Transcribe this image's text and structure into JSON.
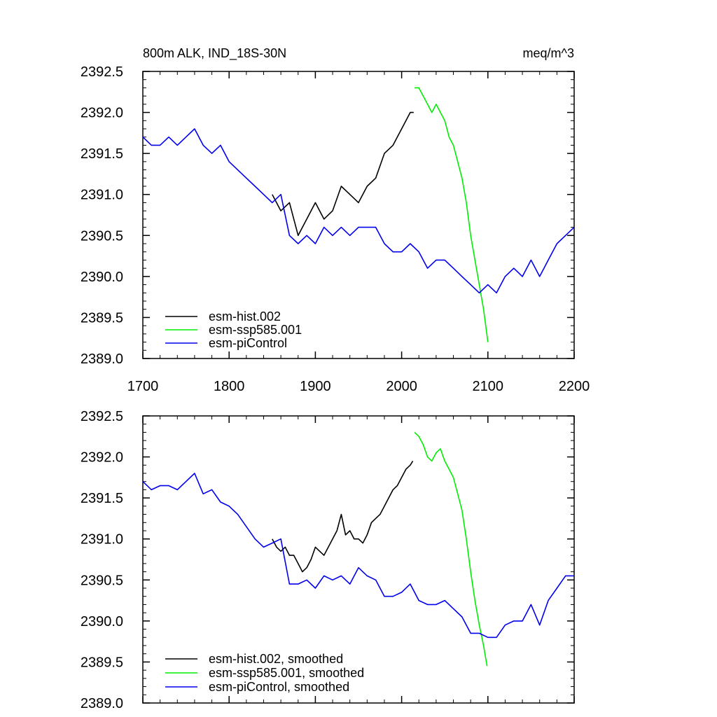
{
  "chart_data": [
    {
      "type": "line",
      "title": "800m ALK, IND_18S-30N",
      "units": "meq/m^3",
      "xlim": [
        1700,
        2200
      ],
      "ylim": [
        2389.0,
        2392.5
      ],
      "x_ticks": [
        1700,
        1800,
        1900,
        2000,
        2100,
        2200
      ],
      "y_ticks": [
        "2389.0",
        "2389.5",
        "2390.0",
        "2390.5",
        "2391.0",
        "2391.5",
        "2392.0",
        "2392.5"
      ],
      "x_tick_labels_shown": true,
      "legend_position": "bottom-left",
      "series": [
        {
          "name": "esm-hist.002",
          "color": "#000000",
          "x": [
            1850,
            1860,
            1870,
            1880,
            1890,
            1900,
            1910,
            1920,
            1930,
            1940,
            1950,
            1960,
            1970,
            1980,
            1990,
            2000,
            2005,
            2010,
            2014
          ],
          "y": [
            2391.0,
            2390.8,
            2390.9,
            2390.5,
            2390.7,
            2390.9,
            2390.7,
            2390.8,
            2391.1,
            2391.0,
            2390.9,
            2391.1,
            2391.2,
            2391.5,
            2391.6,
            2391.8,
            2391.9,
            2392.0,
            2392.0
          ]
        },
        {
          "name": "esm-ssp585.001",
          "color": "#00ee00",
          "x": [
            2015,
            2020,
            2025,
            2030,
            2035,
            2040,
            2045,
            2050,
            2055,
            2060,
            2065,
            2070,
            2075,
            2080,
            2085,
            2090,
            2095,
            2100
          ],
          "y": [
            2392.3,
            2392.3,
            2392.2,
            2392.1,
            2392.0,
            2392.1,
            2392.0,
            2391.9,
            2391.7,
            2391.6,
            2391.4,
            2391.2,
            2390.9,
            2390.5,
            2390.2,
            2389.9,
            2389.6,
            2389.2
          ]
        },
        {
          "name": "esm-piControl",
          "color": "#0000ee",
          "x": [
            1700,
            1710,
            1720,
            1730,
            1740,
            1750,
            1760,
            1770,
            1780,
            1790,
            1800,
            1810,
            1820,
            1830,
            1840,
            1850,
            1860,
            1870,
            1880,
            1890,
            1900,
            1910,
            1920,
            1930,
            1940,
            1950,
            1960,
            1970,
            1980,
            1990,
            2000,
            2010,
            2020,
            2030,
            2040,
            2050,
            2060,
            2070,
            2080,
            2090,
            2100,
            2110,
            2120,
            2130,
            2140,
            2150,
            2160,
            2170,
            2180,
            2190,
            2200
          ],
          "y": [
            2391.7,
            2391.6,
            2391.6,
            2391.7,
            2391.6,
            2391.7,
            2391.8,
            2391.6,
            2391.5,
            2391.6,
            2391.4,
            2391.3,
            2391.2,
            2391.1,
            2391.0,
            2390.9,
            2391.0,
            2390.5,
            2390.4,
            2390.5,
            2390.4,
            2390.6,
            2390.5,
            2390.6,
            2390.5,
            2390.6,
            2390.6,
            2390.6,
            2390.4,
            2390.3,
            2390.3,
            2390.4,
            2390.3,
            2390.1,
            2390.2,
            2390.2,
            2390.1,
            2390.0,
            2389.9,
            2389.8,
            2389.9,
            2389.8,
            2390.0,
            2390.1,
            2390.0,
            2390.2,
            2390.0,
            2390.2,
            2390.4,
            2390.5,
            2390.6
          ]
        }
      ]
    },
    {
      "type": "line",
      "title": "",
      "units": "",
      "xlim": [
        1700,
        2200
      ],
      "ylim": [
        2389.0,
        2392.5
      ],
      "x_ticks": [
        1700,
        1800,
        1900,
        2000,
        2100,
        2200
      ],
      "y_ticks": [
        "2389.0",
        "2389.5",
        "2390.0",
        "2390.5",
        "2391.0",
        "2391.5",
        "2392.0",
        "2392.5"
      ],
      "x_tick_labels_shown": false,
      "legend_position": "bottom-left",
      "series": [
        {
          "name": "esm-hist.002, smoothed",
          "color": "#000000",
          "x": [
            1850,
            1855,
            1860,
            1865,
            1870,
            1875,
            1880,
            1885,
            1890,
            1895,
            1900,
            1905,
            1910,
            1915,
            1920,
            1925,
            1930,
            1935,
            1940,
            1945,
            1950,
            1955,
            1960,
            1965,
            1970,
            1975,
            1980,
            1985,
            1990,
            1995,
            2000,
            2005,
            2010,
            2013
          ],
          "y": [
            2391.0,
            2390.9,
            2390.85,
            2390.9,
            2390.8,
            2390.8,
            2390.7,
            2390.6,
            2390.65,
            2390.75,
            2390.9,
            2390.85,
            2390.8,
            2390.9,
            2391.0,
            2391.1,
            2391.3,
            2391.05,
            2391.1,
            2391.0,
            2391.0,
            2390.95,
            2391.05,
            2391.2,
            2391.25,
            2391.3,
            2391.4,
            2391.5,
            2391.6,
            2391.65,
            2391.75,
            2391.85,
            2391.9,
            2391.95
          ]
        },
        {
          "name": "esm-ssp585.001, smoothed",
          "color": "#00ee00",
          "x": [
            2015,
            2020,
            2025,
            2030,
            2035,
            2040,
            2045,
            2050,
            2055,
            2060,
            2065,
            2070,
            2075,
            2080,
            2085,
            2090,
            2095,
            2099
          ],
          "y": [
            2392.3,
            2392.25,
            2392.15,
            2392.0,
            2391.95,
            2392.05,
            2392.1,
            2391.95,
            2391.85,
            2391.75,
            2391.55,
            2391.35,
            2391.0,
            2390.6,
            2390.25,
            2389.95,
            2389.7,
            2389.45
          ]
        },
        {
          "name": "esm-piControl, smoothed",
          "color": "#0000ee",
          "x": [
            1700,
            1710,
            1720,
            1730,
            1740,
            1750,
            1760,
            1770,
            1780,
            1790,
            1800,
            1810,
            1820,
            1830,
            1840,
            1850,
            1860,
            1870,
            1880,
            1890,
            1900,
            1910,
            1920,
            1930,
            1940,
            1950,
            1960,
            1970,
            1980,
            1990,
            2000,
            2010,
            2020,
            2030,
            2040,
            2050,
            2060,
            2070,
            2080,
            2090,
            2100,
            2110,
            2120,
            2130,
            2140,
            2150,
            2160,
            2170,
            2180,
            2190,
            2200
          ],
          "y": [
            2391.7,
            2391.6,
            2391.65,
            2391.65,
            2391.6,
            2391.7,
            2391.8,
            2391.55,
            2391.6,
            2391.45,
            2391.4,
            2391.3,
            2391.15,
            2391.0,
            2390.9,
            2390.95,
            2391.0,
            2390.45,
            2390.45,
            2390.5,
            2390.4,
            2390.55,
            2390.5,
            2390.55,
            2390.45,
            2390.65,
            2390.55,
            2390.5,
            2390.3,
            2390.3,
            2390.35,
            2390.45,
            2390.25,
            2390.2,
            2390.2,
            2390.25,
            2390.15,
            2390.05,
            2389.85,
            2389.85,
            2389.8,
            2389.8,
            2389.95,
            2390.0,
            2390.0,
            2390.2,
            2389.95,
            2390.25,
            2390.4,
            2390.55,
            2390.55
          ]
        }
      ]
    }
  ]
}
